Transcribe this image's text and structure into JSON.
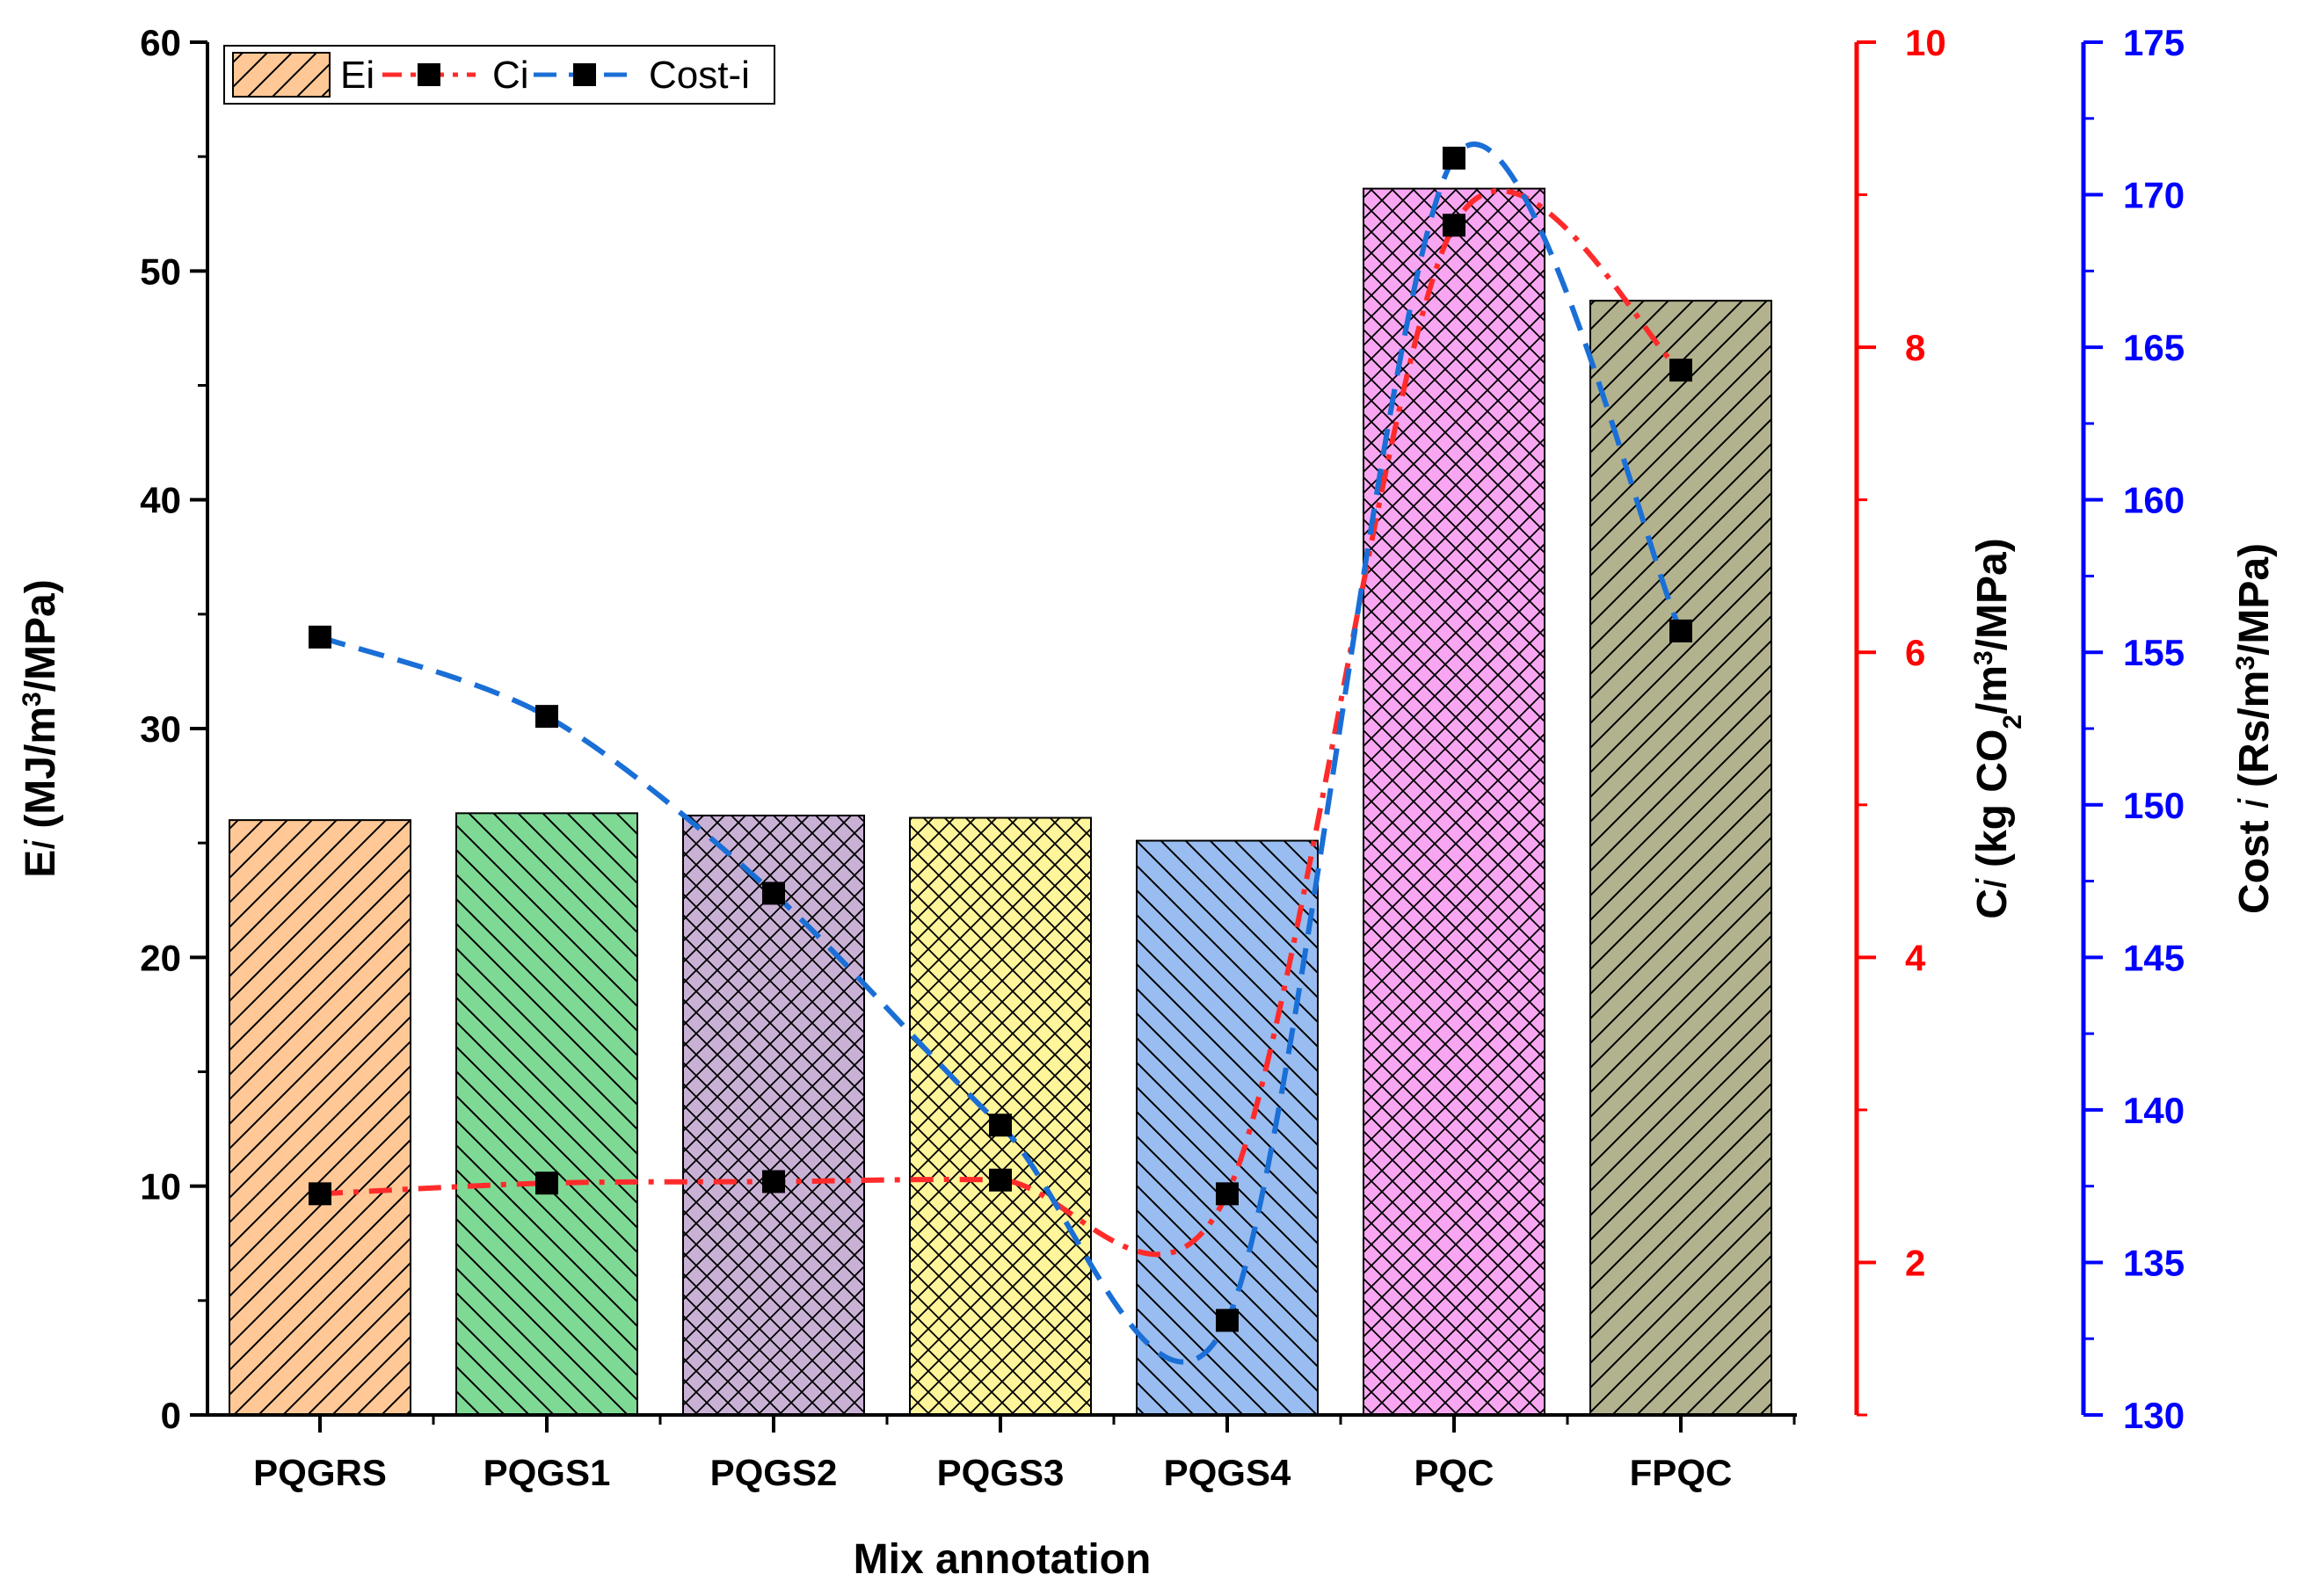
{
  "chart_data": {
    "type": "bar",
    "xlabel": "Mix annotation",
    "categories": [
      "PQGRS",
      "PQGS1",
      "PQGS2",
      "PQGS3",
      "PQGS4",
      "PQC",
      "FPQC"
    ],
    "bar_series": {
      "name": "Ei",
      "values": [
        26.0,
        26.3,
        26.2,
        26.1,
        25.1,
        53.6,
        48.7
      ],
      "colors": [
        "#ffc896",
        "#7ed995",
        "#c9b1d6",
        "#fff59a",
        "#99bdf0",
        "#f9a6f2",
        "#b2b28e"
      ],
      "hatches": [
        "diag-up",
        "diag-down",
        "cross",
        "cross",
        "diag-down",
        "cross",
        "diag-up"
      ]
    },
    "line_series": [
      {
        "name": "Ci",
        "axis": "right1",
        "color": "#ff2b2b",
        "values": [
          2.45,
          2.52,
          2.53,
          2.54,
          2.45,
          8.8,
          7.85
        ]
      },
      {
        "name": "Cost-i",
        "axis": "right2",
        "color": "#1a6fd6",
        "values": [
          155.5,
          152.9,
          147.1,
          139.5,
          133.1,
          171.2,
          155.7
        ]
      }
    ],
    "left_axis": {
      "title_main": "E",
      "title_sub": "i",
      "title_rest": " (MJ/m",
      "title_sup": "3",
      "title_end": "/MPa)",
      "ylim": [
        0,
        60
      ],
      "ticks": [
        0,
        10,
        20,
        30,
        40,
        50,
        60
      ],
      "minor_step": 5
    },
    "right_axis_1": {
      "title_main": "C",
      "title_sub": "i",
      "title_rest": " (kg CO",
      "title_sub2": "2",
      "title_mid": "/m",
      "title_sup": "3",
      "title_end": "/MPa)",
      "ylim": [
        1,
        10
      ],
      "ticks": [
        2,
        4,
        6,
        8,
        10
      ],
      "minor_ticks": [
        1,
        3,
        5,
        7,
        9
      ],
      "color": "#ff0000"
    },
    "right_axis_2": {
      "title_main": "Cost ",
      "title_sub": "i",
      "title_rest": " (Rs/m",
      "title_sup": "3",
      "title_end": "/MPa)",
      "ylim": [
        130,
        175
      ],
      "ticks": [
        130,
        135,
        140,
        145,
        150,
        155,
        160,
        165,
        170,
        175
      ],
      "minor_step": 2.5,
      "color": "#0000ff"
    },
    "legend": {
      "position": "top-left",
      "entries": [
        "Ei",
        "Ci",
        "Cost-i"
      ]
    }
  }
}
